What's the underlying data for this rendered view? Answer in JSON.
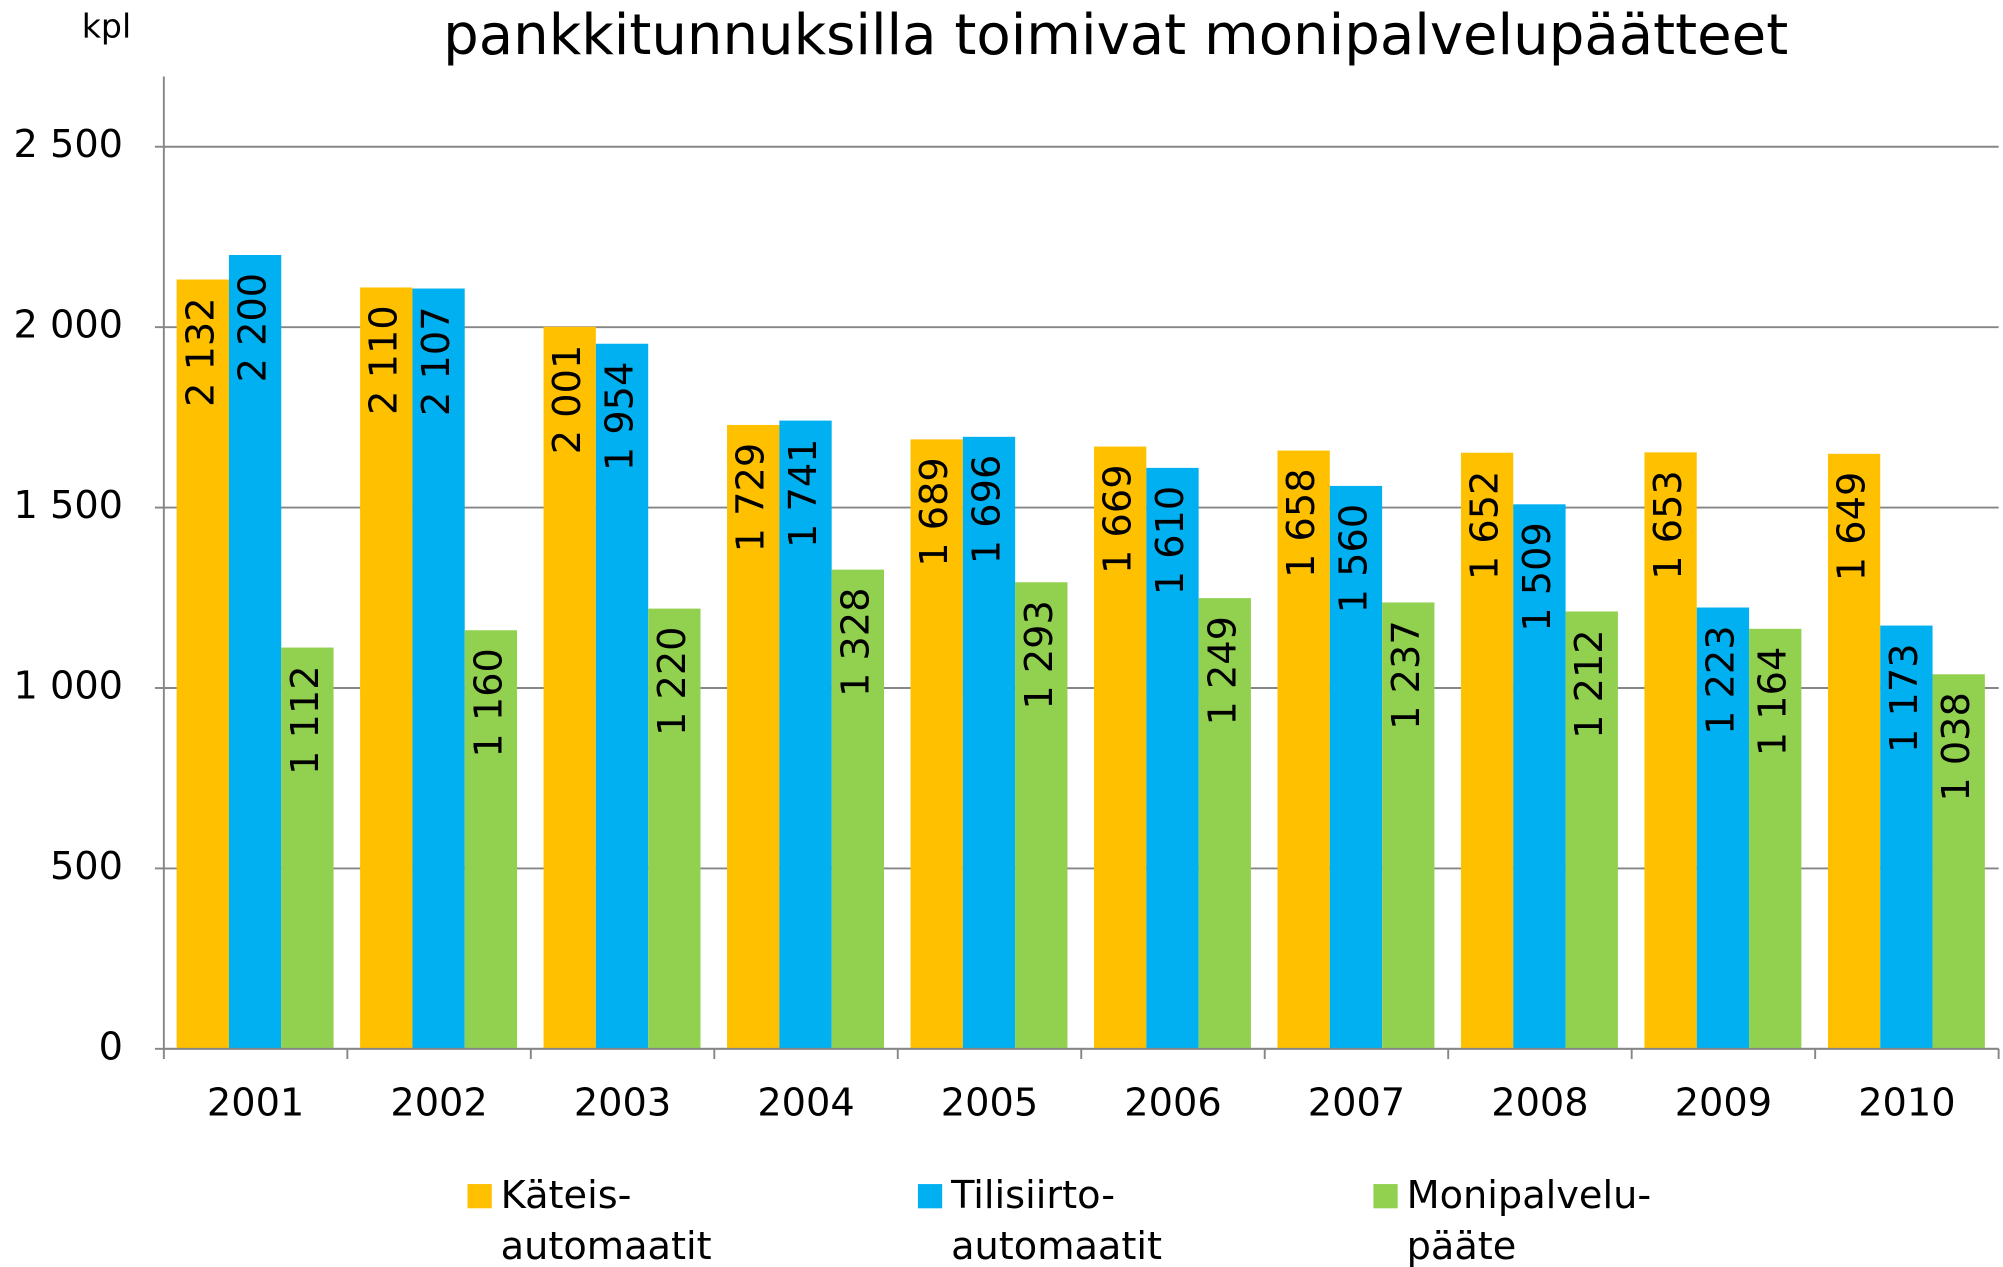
{
  "chart_data": {
    "type": "bar",
    "title": "pankkitunnuksilla toimivat monipalvelupäätteet",
    "y_label": "kpl",
    "categories": [
      "2001",
      "2002",
      "2003",
      "2004",
      "2005",
      "2006",
      "2007",
      "2008",
      "2009",
      "2010"
    ],
    "series": [
      {
        "name": "Käteis-\nautomaatit",
        "color": "#FFC000",
        "values": [
          2132,
          2110,
          2001,
          1729,
          1689,
          1669,
          1658,
          1652,
          1653,
          1649
        ],
        "value_labels": [
          "2 132",
          "2 110",
          "2 001",
          "1 729",
          "1 689",
          "1 669",
          "1 658",
          "1 652",
          "1 653",
          "1 649"
        ]
      },
      {
        "name": "Tilisiirto-\nautomaatit",
        "color": "#00B0F0",
        "values": [
          2200,
          2107,
          1954,
          1741,
          1696,
          1610,
          1560,
          1509,
          1223,
          1173
        ],
        "value_labels": [
          "2 200",
          "2 107",
          "1 954",
          "1 741",
          "1 696",
          "1 610",
          "1 560",
          "1 509",
          "1 223",
          "1 173"
        ]
      },
      {
        "name": "Monipalvelu-\npääte",
        "color": "#92D050",
        "values": [
          1112,
          1160,
          1220,
          1328,
          1293,
          1249,
          1237,
          1212,
          1164,
          1038
        ],
        "value_labels": [
          "1 112",
          "1 160",
          "1 220",
          "1 328",
          "1 293",
          "1 249",
          "1 237",
          "1 212",
          "1 164",
          "1 038"
        ]
      }
    ],
    "ylim": [
      0,
      2500
    ],
    "yticks": [
      0,
      500,
      {
        "value": 1000,
        "label": "1 000"
      },
      {
        "value": 1500,
        "label": "1 500"
      },
      {
        "value": 2000,
        "label": "2 000"
      },
      {
        "value": 2500,
        "label": "2 500"
      }
    ],
    "grid": true,
    "legend": "bottom"
  }
}
